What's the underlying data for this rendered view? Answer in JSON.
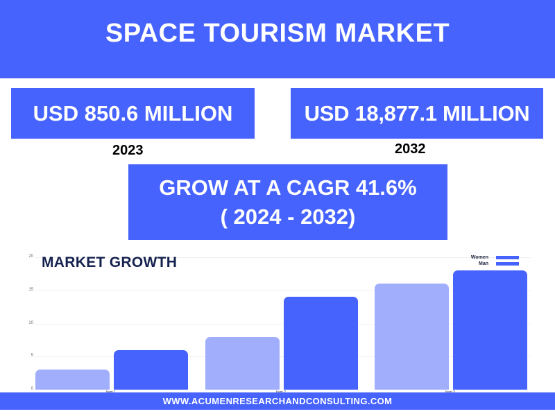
{
  "header": {
    "title": "SPACE TOURISM MARKET"
  },
  "stats": {
    "left": {
      "value": "USD 850.6 MILLION",
      "year": "2023"
    },
    "right": {
      "value": "USD 18,877.1 MILLION",
      "year": "2032"
    }
  },
  "cagr": {
    "line1": "GROW AT A CAGR 41.6%",
    "line2": "( 2024 - 2032)"
  },
  "footer": {
    "url": "WWW.ACUMENRESEARCHANDCONSULTING.COM"
  },
  "colors": {
    "brand": "#4763fe",
    "light_bar": "#a0aefc",
    "title_dark": "#15224f"
  },
  "chart_data": {
    "type": "bar",
    "title": "MARKET GROWTH",
    "categories": [
      "Item 1",
      "Item 2",
      "Item 3"
    ],
    "series": [
      {
        "name": "Women",
        "color": "#a0aefc",
        "values": [
          3,
          8,
          16
        ]
      },
      {
        "name": "Man",
        "color": "#4763fe",
        "values": [
          6,
          14,
          18
        ]
      }
    ],
    "legend": [
      "Women",
      "Man"
    ],
    "legend_position": "top-right",
    "legend_swatch_color": "#4763fe",
    "yticks": [
      "20",
      "15",
      "10",
      "5",
      "0"
    ],
    "ylim": [
      0,
      20
    ],
    "xlabel": "",
    "ylabel": "",
    "grid": true
  }
}
